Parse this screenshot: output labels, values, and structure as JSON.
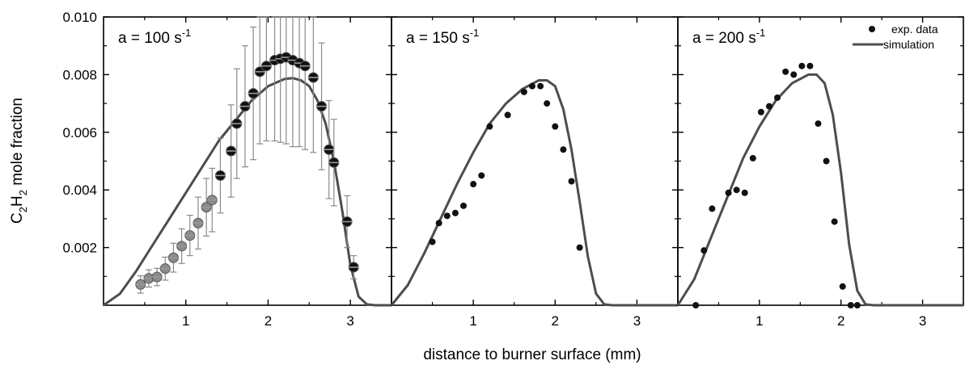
{
  "figure": {
    "ylabel": "C2H2 mole fraction",
    "xlabel": "distance to burner surface (mm)",
    "legend": [
      {
        "label": "exp. data",
        "kind": "marker"
      },
      {
        "label": "simulation",
        "kind": "line"
      }
    ],
    "colors": {
      "axis": "#000000",
      "simulation": "#4d4d4d",
      "exp_marker": "#111111",
      "exp_marker_gray": "#8c8c8c",
      "errorbar": "#8a8a8a"
    }
  },
  "chart_data": [
    {
      "type": "scatter",
      "panel_label": "a = 100 s-1",
      "strain_rate": 100,
      "xlim": [
        0,
        3.5
      ],
      "ylim": [
        0,
        0.01
      ],
      "x_ticks": [
        1,
        2,
        3
      ],
      "y_ticks": [
        0.002,
        0.004,
        0.006,
        0.008,
        0.01
      ],
      "y_tick_labels": [
        "0.002",
        "0.004",
        "0.006",
        "0.008",
        "0.010"
      ],
      "series": [
        {
          "name": "exp. data",
          "style": "marker",
          "points": [
            {
              "x": 0.45,
              "y": 0.00072,
              "err": 0.0003,
              "gray": true
            },
            {
              "x": 0.55,
              "y": 0.00093,
              "err": 0.0003,
              "gray": true
            },
            {
              "x": 0.65,
              "y": 0.00098,
              "err": 0.0003,
              "gray": true
            },
            {
              "x": 0.75,
              "y": 0.00127,
              "err": 0.0004,
              "gray": true
            },
            {
              "x": 0.85,
              "y": 0.00165,
              "err": 0.0005,
              "gray": true
            },
            {
              "x": 0.95,
              "y": 0.00205,
              "err": 0.0006,
              "gray": true
            },
            {
              "x": 1.05,
              "y": 0.00242,
              "err": 0.0007,
              "gray": true
            },
            {
              "x": 1.15,
              "y": 0.00285,
              "err": 0.0009,
              "gray": true
            },
            {
              "x": 1.25,
              "y": 0.0034,
              "err": 0.001,
              "gray": true
            },
            {
              "x": 1.32,
              "y": 0.00365,
              "err": 0.0011,
              "gray": true
            },
            {
              "x": 1.42,
              "y": 0.0045,
              "err": 0.0013,
              "gray": false
            },
            {
              "x": 1.55,
              "y": 0.00535,
              "err": 0.0016,
              "gray": false
            },
            {
              "x": 1.62,
              "y": 0.0063,
              "err": 0.0019,
              "gray": false
            },
            {
              "x": 1.72,
              "y": 0.0069,
              "err": 0.0021,
              "gray": false
            },
            {
              "x": 1.82,
              "y": 0.00735,
              "err": 0.0023,
              "gray": false
            },
            {
              "x": 1.9,
              "y": 0.0081,
              "err": 0.0025,
              "gray": false
            },
            {
              "x": 1.98,
              "y": 0.0083,
              "err": 0.0026,
              "gray": false
            },
            {
              "x": 2.08,
              "y": 0.0085,
              "err": 0.0028,
              "gray": false
            },
            {
              "x": 2.15,
              "y": 0.00855,
              "err": 0.0029,
              "gray": false
            },
            {
              "x": 2.22,
              "y": 0.0086,
              "err": 0.003,
              "gray": false
            },
            {
              "x": 2.3,
              "y": 0.0085,
              "err": 0.003,
              "gray": false
            },
            {
              "x": 2.38,
              "y": 0.0084,
              "err": 0.0029,
              "gray": false
            },
            {
              "x": 2.45,
              "y": 0.0083,
              "err": 0.0029,
              "gray": false
            },
            {
              "x": 2.55,
              "y": 0.0079,
              "err": 0.0026,
              "gray": false
            },
            {
              "x": 2.65,
              "y": 0.0069,
              "err": 0.0022,
              "gray": false
            },
            {
              "x": 2.74,
              "y": 0.0054,
              "err": 0.0017,
              "gray": false
            },
            {
              "x": 2.8,
              "y": 0.00495,
              "err": 0.0015,
              "gray": false
            },
            {
              "x": 2.96,
              "y": 0.0029,
              "err": 0.0009,
              "gray": false
            },
            {
              "x": 3.04,
              "y": 0.00132,
              "err": 0.0004,
              "gray": false
            }
          ]
        },
        {
          "name": "simulation",
          "style": "line",
          "x": [
            0,
            0.2,
            0.4,
            0.6,
            0.8,
            1.0,
            1.2,
            1.4,
            1.6,
            1.8,
            2.0,
            2.2,
            2.3,
            2.4,
            2.5,
            2.6,
            2.7,
            2.8,
            2.9,
            3.0,
            3.1,
            3.2,
            3.3,
            3.5
          ],
          "y": [
            0,
            0.0004,
            0.0012,
            0.0021,
            0.003,
            0.0039,
            0.0048,
            0.0057,
            0.0064,
            0.0071,
            0.0076,
            0.00785,
            0.00788,
            0.0078,
            0.0076,
            0.0071,
            0.0063,
            0.005,
            0.0033,
            0.0014,
            0.0003,
            3e-05,
            0,
            0
          ]
        }
      ]
    },
    {
      "type": "scatter",
      "panel_label": "a = 150 s-1",
      "strain_rate": 150,
      "xlim": [
        0,
        3.5
      ],
      "ylim": [
        0,
        0.01
      ],
      "x_ticks": [
        1,
        2,
        3
      ],
      "series": [
        {
          "name": "exp. data",
          "style": "marker",
          "points": [
            {
              "x": 0.5,
              "y": 0.0022
            },
            {
              "x": 0.58,
              "y": 0.00285
            },
            {
              "x": 0.68,
              "y": 0.0031
            },
            {
              "x": 0.78,
              "y": 0.0032
            },
            {
              "x": 0.88,
              "y": 0.00345
            },
            {
              "x": 1.0,
              "y": 0.0042
            },
            {
              "x": 1.1,
              "y": 0.0045
            },
            {
              "x": 1.2,
              "y": 0.0062
            },
            {
              "x": 1.42,
              "y": 0.0066
            },
            {
              "x": 1.62,
              "y": 0.0074
            },
            {
              "x": 1.72,
              "y": 0.0076
            },
            {
              "x": 1.82,
              "y": 0.0076
            },
            {
              "x": 1.9,
              "y": 0.007
            },
            {
              "x": 2.0,
              "y": 0.0062
            },
            {
              "x": 2.1,
              "y": 0.0054
            },
            {
              "x": 2.2,
              "y": 0.0043
            },
            {
              "x": 2.3,
              "y": 0.002
            }
          ]
        },
        {
          "name": "simulation",
          "style": "line",
          "x": [
            0,
            0.2,
            0.4,
            0.6,
            0.8,
            1.0,
            1.2,
            1.4,
            1.6,
            1.8,
            1.9,
            2.0,
            2.1,
            2.2,
            2.3,
            2.4,
            2.5,
            2.6,
            2.7,
            3.5
          ],
          "y": [
            0,
            0.0007,
            0.0018,
            0.003,
            0.0042,
            0.0053,
            0.0063,
            0.007,
            0.0075,
            0.0078,
            0.0078,
            0.0076,
            0.0068,
            0.0054,
            0.0036,
            0.0017,
            0.0004,
            3e-05,
            0,
            0
          ]
        }
      ]
    },
    {
      "type": "scatter",
      "panel_label": "a = 200 s-1",
      "strain_rate": 200,
      "xlim": [
        0,
        3.5
      ],
      "ylim": [
        0,
        0.01
      ],
      "x_ticks": [
        1,
        2,
        3
      ],
      "legend_position": "top-right",
      "series": [
        {
          "name": "exp. data",
          "style": "marker",
          "points": [
            {
              "x": 0.22,
              "y": 0.0
            },
            {
              "x": 0.32,
              "y": 0.0019
            },
            {
              "x": 0.42,
              "y": 0.00335
            },
            {
              "x": 0.62,
              "y": 0.0039
            },
            {
              "x": 0.72,
              "y": 0.004
            },
            {
              "x": 0.82,
              "y": 0.0039
            },
            {
              "x": 0.92,
              "y": 0.0051
            },
            {
              "x": 1.02,
              "y": 0.0067
            },
            {
              "x": 1.12,
              "y": 0.0069
            },
            {
              "x": 1.22,
              "y": 0.0072
            },
            {
              "x": 1.32,
              "y": 0.0081
            },
            {
              "x": 1.42,
              "y": 0.008
            },
            {
              "x": 1.52,
              "y": 0.0083
            },
            {
              "x": 1.62,
              "y": 0.0083
            },
            {
              "x": 1.72,
              "y": 0.0063
            },
            {
              "x": 1.82,
              "y": 0.005
            },
            {
              "x": 1.92,
              "y": 0.0029
            },
            {
              "x": 2.02,
              "y": 0.00065
            },
            {
              "x": 2.12,
              "y": 0.0
            },
            {
              "x": 2.2,
              "y": 0.0
            }
          ]
        },
        {
          "name": "simulation",
          "style": "line",
          "x": [
            0,
            0.2,
            0.4,
            0.6,
            0.8,
            1.0,
            1.2,
            1.4,
            1.6,
            1.7,
            1.8,
            1.9,
            2.0,
            2.1,
            2.2,
            2.3,
            2.4,
            3.5
          ],
          "y": [
            0,
            0.0009,
            0.0023,
            0.0037,
            0.0051,
            0.0062,
            0.0071,
            0.0077,
            0.008,
            0.008,
            0.0077,
            0.0066,
            0.0046,
            0.0021,
            0.0005,
            3e-05,
            0,
            0
          ]
        }
      ]
    }
  ]
}
